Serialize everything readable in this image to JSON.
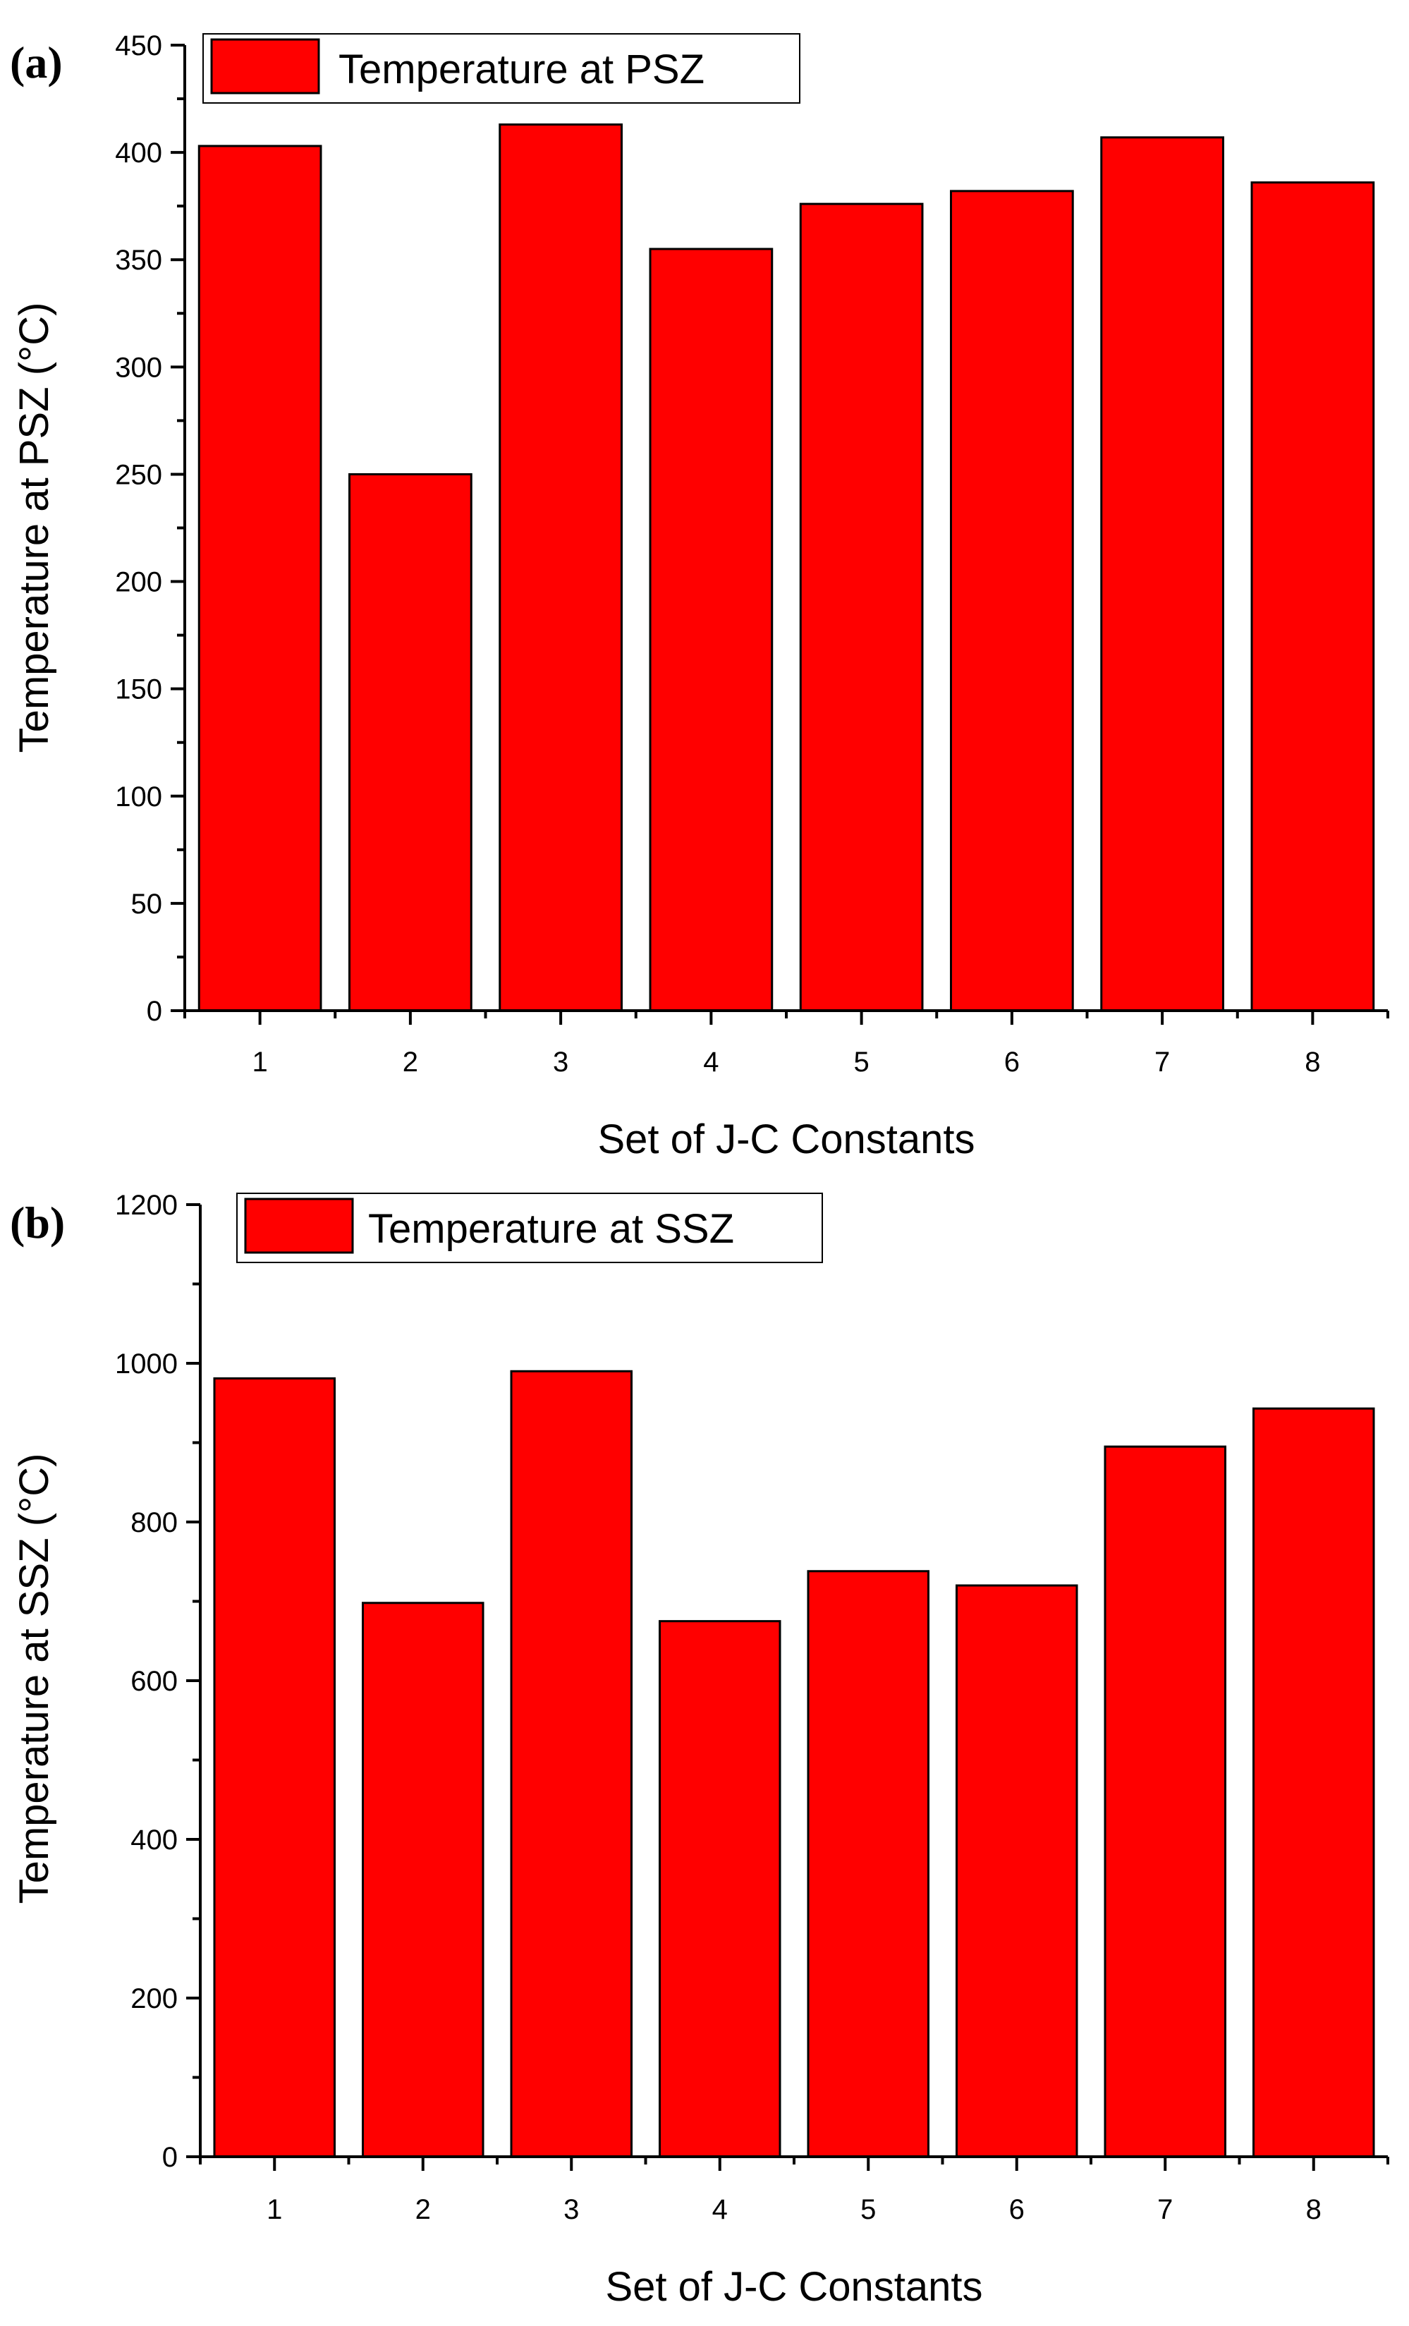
{
  "colors": {
    "bar": "#ff0000",
    "axis": "#000000",
    "background": "#ffffff"
  },
  "chart_data": [
    {
      "panel_label": "(a)",
      "type": "bar",
      "categories": [
        "1",
        "2",
        "3",
        "4",
        "5",
        "6",
        "7",
        "8"
      ],
      "series": [
        {
          "name": "Temperature at PSZ",
          "values": [
            403,
            250,
            413,
            355,
            376,
            382,
            407,
            386
          ]
        }
      ],
      "xlabel": "Set of J-C Constants",
      "ylabel": "Temperature at PSZ (°C)",
      "ylim": [
        0,
        450
      ],
      "yticks": [
        0,
        50,
        100,
        150,
        200,
        250,
        300,
        350,
        400,
        450
      ],
      "legend": "top-left",
      "grid": false
    },
    {
      "panel_label": "(b)",
      "type": "bar",
      "categories": [
        "1",
        "2",
        "3",
        "4",
        "5",
        "6",
        "7",
        "8"
      ],
      "series": [
        {
          "name": "Temperature at SSZ",
          "values": [
            981,
            698,
            990,
            675,
            738,
            720,
            895,
            943
          ]
        }
      ],
      "xlabel": "Set of J-C Constants",
      "ylabel": "Temperature at SSZ (°C)",
      "ylim": [
        0,
        1200
      ],
      "yticks": [
        0,
        200,
        400,
        600,
        800,
        1000,
        1200
      ],
      "legend": "top-left",
      "grid": false
    }
  ]
}
